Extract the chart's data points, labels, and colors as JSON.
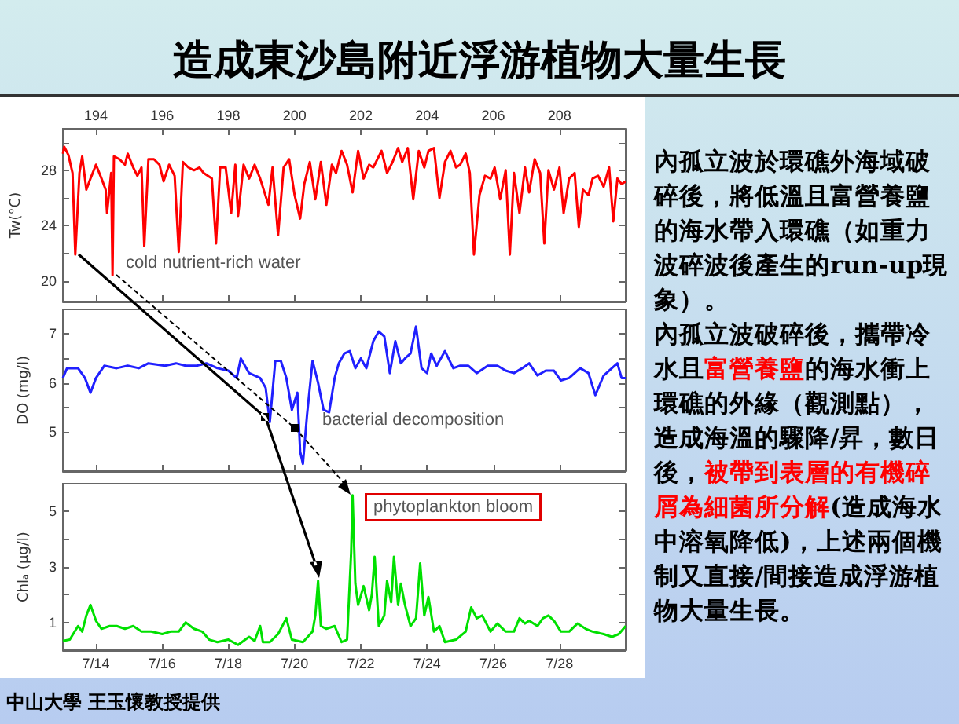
{
  "chart_data": [
    {
      "type": "line",
      "ylabel": "Tw(°C)",
      "annotations": [
        "cold nutrient-rich water"
      ],
      "tick_labels": "y",
      "xlim": [
        "--07-13",
        "--07-30"
      ],
      "xticks": [
        {
          "value": "--07-14",
          "label": "7/14"
        },
        {
          "value": "--07-16",
          "label": "7/16"
        },
        {
          "value": "--07-18",
          "label": "7/18"
        },
        {
          "value": "--07-20",
          "label": "7/20"
        },
        {
          "value": "--07-22",
          "label": "7/22"
        },
        {
          "value": "--07-24",
          "label": "7/24"
        },
        {
          "value": "--07-26",
          "label": "7/26"
        },
        {
          "value": "--07-28",
          "label": "7/28"
        }
      ],
      "x2lim": [
        193,
        210
      ],
      "x2ticks": [
        194,
        196,
        198,
        200,
        202,
        204,
        206,
        208
      ],
      "ylim": [
        18.5,
        31
      ],
      "yticks": [
        20,
        {
          "value": 22,
          "label": null
        },
        24,
        {
          "value": 26,
          "label": null
        },
        28,
        {
          "value": 30,
          "label": null
        }
      ],
      "series": [
        {
          "color": "#ff0000",
          "x": [
            "--07-13T00:00",
            "--07-13T01:00",
            "--07-13T04:00",
            "--07-13T07:00",
            "--07-13T09:00",
            "--07-13T12:00",
            "--07-13T14:00",
            "--07-13T17:00",
            "--07-13T20:00",
            "--07-14T00:00",
            "--07-14T04:00",
            "--07-14T07:00",
            "--07-14T08:00",
            "--07-14T11:00",
            "--07-14T12:00",
            "--07-14T13:00",
            "--07-14T17:00",
            "--07-14T21:00",
            "--07-14T23:00",
            "--07-15T03:00",
            "--07-15T06:00",
            "--07-15T09:00",
            "--07-15T11:00",
            "--07-15T14:00",
            "--07-15T18:00",
            "--07-15T22:00",
            "--07-16T01:00",
            "--07-16T05:00",
            "--07-16T09:00",
            "--07-16T12:00",
            "--07-16T15:00",
            "--07-16T19:00",
            "--07-16T23:00",
            "--07-17T03:00",
            "--07-17T06:00",
            "--07-17T12:00",
            "--07-17T15:00",
            "--07-17T18:00",
            "--07-17T22:00",
            "--07-18T02:00",
            "--07-18T05:00",
            "--07-18T07:00",
            "--07-18T11:00",
            "--07-18T15:00",
            "--07-18T19:00",
            "--07-18T23:00",
            "--07-19T05:00",
            "--07-19T08:00",
            "--07-19T12:00",
            "--07-19T16:00",
            "--07-19T20:00",
            "--07-20T00:00",
            "--07-20T04:00",
            "--07-20T07:00",
            "--07-20T11:00",
            "--07-20T15:00",
            "--07-20T19:00",
            "--07-20T23:00",
            "--07-21T03:00",
            "--07-21T06:00",
            "--07-21T10:00",
            "--07-21T14:00",
            "--07-21T18:00",
            "--07-21T22:00",
            "--07-22T02:00",
            "--07-22T06:00",
            "--07-22T09:00",
            "--07-22T15:00",
            "--07-22T19:00",
            "--07-22T23:00",
            "--07-23T03:00",
            "--07-23T06:00",
            "--07-23T10:00",
            "--07-23T14:00",
            "--07-23T18:00",
            "--07-23T22:00",
            "--07-24T01:00",
            "--07-24T05:00",
            "--07-24T09:00",
            "--07-24T13:00",
            "--07-24T17:00",
            "--07-24T21:00",
            "--07-25T00:00",
            "--07-25T04:00",
            "--07-25T07:00",
            "--07-25T10:00",
            "--07-25T14:00",
            "--07-25T18:00",
            "--07-25T22:00",
            "--07-26T01:00",
            "--07-26T05:00",
            "--07-26T09:00",
            "--07-26T12:00",
            "--07-26T15:00",
            "--07-26T19:00",
            "--07-26T23:00",
            "--07-27T02:00",
            "--07-27T06:00",
            "--07-27T10:00",
            "--07-27T13:00",
            "--07-27T16:00",
            "--07-27T20:00",
            "--07-28T00:00",
            "--07-28T03:00",
            "--07-28T07:00",
            "--07-28T11:00",
            "--07-28T14:00",
            "--07-28T17:00",
            "--07-28T21:00",
            "--07-29T00:00",
            "--07-29T04:00",
            "--07-29T08:00",
            "--07-29T12:00",
            "--07-29T15:00",
            "--07-29T18:00",
            "--07-29T21:00",
            "--07-30T00:00"
          ],
          "values": [
            29.2,
            29.7,
            29.1,
            27.8,
            21.9,
            27.8,
            29.0,
            26.6,
            27.4,
            28.4,
            27.4,
            26.6,
            24.9,
            27.8,
            20.4,
            29.0,
            28.8,
            28.4,
            29.2,
            28.2,
            27.6,
            28.2,
            22.5,
            28.8,
            28.8,
            28.4,
            27.2,
            28.4,
            27.6,
            22.1,
            28.6,
            28.2,
            28.0,
            28.2,
            27.8,
            27.4,
            22.7,
            28.2,
            28.2,
            24.9,
            28.4,
            24.7,
            28.4,
            27.4,
            28.4,
            27.4,
            25.5,
            28.2,
            23.3,
            28.2,
            28.8,
            26.2,
            24.5,
            27.0,
            28.6,
            25.9,
            28.6,
            25.5,
            28.4,
            27.8,
            29.4,
            28.4,
            26.4,
            29.4,
            27.4,
            28.4,
            28.2,
            29.4,
            27.8,
            28.6,
            29.6,
            28.6,
            29.6,
            25.9,
            29.4,
            28.2,
            29.4,
            29.6,
            26.0,
            28.6,
            29.4,
            28.2,
            28.4,
            29.2,
            27.8,
            21.9,
            26.2,
            27.6,
            27.4,
            28.2,
            25.9,
            28.0,
            21.9,
            27.8,
            24.9,
            28.2,
            26.4,
            28.8,
            27.8,
            22.7,
            28.0,
            26.6,
            28.2,
            24.9,
            27.4,
            27.8,
            23.9,
            26.6,
            26.2,
            27.4,
            27.6,
            26.8,
            28.2,
            24.3,
            27.4,
            27.0,
            27.2
          ]
        }
      ]
    },
    {
      "type": "line",
      "ylabel": "DO (mg/l)",
      "annotations": [
        "bacterial decomposition"
      ],
      "tick_labels": "y",
      "xlim": [
        "--07-13",
        "--07-30"
      ],
      "xticks": [
        {
          "value": "--07-14",
          "label": "7/14"
        },
        {
          "value": "--07-16",
          "label": "7/16"
        },
        {
          "value": "--07-18",
          "label": "7/18"
        },
        {
          "value": "--07-20",
          "label": "7/20"
        },
        {
          "value": "--07-22",
          "label": "7/22"
        },
        {
          "value": "--07-24",
          "label": "7/24"
        },
        {
          "value": "--07-26",
          "label": "7/26"
        },
        {
          "value": "--07-28",
          "label": "7/28"
        }
      ],
      "ylim": [
        4.2,
        7.5
      ],
      "yticks": [
        5,
        {
          "value": 5.5,
          "label": null
        },
        6,
        {
          "value": 6.5,
          "label": null
        },
        7
      ],
      "series": [
        {
          "color": "#2020ff",
          "x": [
            "--07-13T00:00",
            "--07-13T03:00",
            "--07-13T11:00",
            "--07-13T16:00",
            "--07-13T20:00",
            "--07-14T00:00",
            "--07-14T06:00",
            "--07-14T15:00",
            "--07-14T23:00",
            "--07-15T07:00",
            "--07-15T14:00",
            "--07-16T02:00",
            "--07-16T10:00",
            "--07-16T17:00",
            "--07-17T01:00",
            "--07-17T08:00",
            "--07-17T16:00",
            "--07-18T00:00",
            "--07-18T06:00",
            "--07-18T09:00",
            "--07-18T15:00",
            "--07-18T23:00",
            "--07-19T03:00",
            "--07-19T06:00",
            "--07-19T10:00",
            "--07-19T14:00",
            "--07-19T18:00",
            "--07-19T22:00",
            "--07-20T02:00",
            "--07-20T04:00",
            "--07-20T06:00",
            "--07-20T09:00",
            "--07-20T13:00",
            "--07-20T17:00",
            "--07-20T21:00",
            "--07-21T01:00",
            "--07-21T05:00",
            "--07-21T08:00",
            "--07-21T12:00",
            "--07-21T16:00",
            "--07-21T20:00",
            "--07-22T00:00",
            "--07-22T04:00",
            "--07-22T09:00",
            "--07-22T13:00",
            "--07-22T17:00",
            "--07-22T21:00",
            "--07-23T01:00",
            "--07-23T05:00",
            "--07-23T08:00",
            "--07-23T12:00",
            "--07-23T16:00",
            "--07-23T20:00",
            "--07-24T00:00",
            "--07-24T03:00",
            "--07-24T07:00",
            "--07-24T13:00",
            "--07-24T19:00",
            "--07-25T00:00",
            "--07-25T06:00",
            "--07-25T12:00",
            "--07-25T20:00",
            "--07-26T03:00",
            "--07-26T09:00",
            "--07-26T15:00",
            "--07-26T21:00",
            "--07-27T02:00",
            "--07-27T08:00",
            "--07-27T14:00",
            "--07-27T20:00",
            "--07-28T01:00",
            "--07-28T07:00",
            "--07-28T15:00",
            "--07-28T21:00",
            "--07-29T02:00",
            "--07-29T08:00",
            "--07-29T14:00",
            "--07-29T18:00",
            "--07-29T21:00",
            "--07-30T00:00"
          ],
          "values": [
            6.1,
            6.3,
            6.3,
            6.1,
            5.8,
            6.1,
            6.35,
            6.3,
            6.35,
            6.3,
            6.4,
            6.35,
            6.4,
            6.35,
            6.35,
            6.4,
            6.3,
            6.25,
            6.1,
            6.5,
            6.2,
            6.1,
            5.9,
            5.2,
            6.45,
            6.45,
            6.1,
            5.45,
            5.8,
            4.6,
            4.35,
            5.35,
            6.45,
            6.0,
            5.45,
            5.4,
            6.1,
            6.4,
            6.6,
            6.65,
            6.3,
            6.5,
            6.3,
            6.85,
            7.05,
            6.95,
            6.2,
            6.85,
            6.4,
            6.5,
            6.6,
            7.15,
            6.3,
            6.2,
            6.6,
            6.35,
            6.65,
            6.3,
            6.35,
            6.35,
            6.2,
            6.35,
            6.35,
            6.25,
            6.2,
            6.3,
            6.4,
            6.15,
            6.25,
            6.25,
            6.05,
            6.1,
            6.3,
            6.2,
            5.75,
            6.15,
            6.3,
            6.4,
            6.1,
            6.1
          ]
        }
      ]
    },
    {
      "type": "line",
      "ylabel": "Chlₐ (μg/l)",
      "annotations": [
        "phytoplankton bloom"
      ],
      "xlim": [
        "--07-13",
        "--07-30"
      ],
      "xticks": [
        {
          "value": "--07-14",
          "label": "7/14"
        },
        {
          "value": "--07-16",
          "label": "7/16"
        },
        {
          "value": "--07-18",
          "label": "7/18"
        },
        {
          "value": "--07-20",
          "label": "7/20"
        },
        {
          "value": "--07-22",
          "label": "7/22"
        },
        {
          "value": "--07-24",
          "label": "7/24"
        },
        {
          "value": "--07-26",
          "label": "7/26"
        },
        {
          "value": "--07-28",
          "label": "7/28"
        }
      ],
      "ylim": [
        0,
        6
      ],
      "yticks": [
        1,
        {
          "value": 2,
          "label": null
        },
        3,
        {
          "value": 4,
          "label": null
        },
        5
      ],
      "series": [
        {
          "color": "#00e000",
          "x": [
            "--07-13T00:00",
            "--07-13T05:00",
            "--07-13T11:00",
            "--07-13T14:00",
            "--07-13T17:00",
            "--07-13T20:00",
            "--07-14T00:00",
            "--07-14T04:00",
            "--07-14T10:00",
            "--07-14T15:00",
            "--07-14T21:00",
            "--07-15T03:00",
            "--07-15T09:00",
            "--07-15T16:00",
            "--07-16T00:00",
            "--07-16T06:00",
            "--07-16T12:00",
            "--07-16T17:00",
            "--07-16T23:00",
            "--07-17T05:00",
            "--07-17T10:00",
            "--07-17T16:00",
            "--07-18T00:00",
            "--07-18T07:00",
            "--07-18T15:00",
            "--07-18T19:00",
            "--07-18T23:00",
            "--07-19T01:00",
            "--07-19T06:00",
            "--07-19T12:00",
            "--07-19T18:00",
            "--07-19T22:00",
            "--07-20T06:00",
            "--07-20T13:00",
            "--07-20T15:00",
            "--07-20T17:00",
            "--07-20T19:00",
            "--07-20T23:00",
            "--07-21T05:00",
            "--07-21T10:00",
            "--07-21T14:00",
            "--07-21T17:00",
            "--07-21T18:00",
            "--07-21T20:00",
            "--07-21T22:00",
            "--07-22T02:00",
            "--07-22T06:00",
            "--07-22T08:00",
            "--07-22T10:00",
            "--07-22T13:00",
            "--07-22T17:00",
            "--07-22T19:00",
            "--07-22T22:00",
            "--07-23T00:00",
            "--07-23T03:00",
            "--07-23T05:00",
            "--07-23T08:00",
            "--07-23T12:00",
            "--07-23T16:00",
            "--07-23T19:00",
            "--07-23T22:00",
            "--07-24T01:00",
            "--07-24T05:00",
            "--07-24T09:00",
            "--07-24T13:00",
            "--07-24T21:00",
            "--07-25T04:00",
            "--07-25T08:00",
            "--07-25T12:00",
            "--07-25T16:00",
            "--07-25T22:00",
            "--07-26T03:00",
            "--07-26T09:00",
            "--07-26T15:00",
            "--07-26T19:00",
            "--07-26T23:00",
            "--07-27T02:00",
            "--07-27T08:00",
            "--07-27T12:00",
            "--07-27T16:00",
            "--07-27T20:00",
            "--07-28T01:00",
            "--07-28T07:00",
            "--07-28T13:00",
            "--07-28T19:00",
            "--07-29T00:00",
            "--07-29T08:00",
            "--07-29T14:00",
            "--07-29T19:00",
            "--07-30T00:00"
          ],
          "values": [
            0.33,
            0.38,
            0.87,
            0.67,
            1.25,
            1.63,
            1.06,
            0.77,
            0.87,
            0.87,
            0.77,
            0.87,
            0.67,
            0.67,
            0.58,
            0.67,
            0.67,
            1.0,
            0.77,
            0.67,
            0.38,
            0.29,
            0.38,
            0.19,
            0.48,
            0.33,
            0.87,
            0.29,
            0.29,
            0.58,
            1.15,
            0.38,
            0.29,
            0.67,
            1.25,
            2.5,
            0.87,
            0.77,
            0.87,
            0.29,
            0.38,
            3.56,
            5.58,
            2.4,
            1.63,
            2.31,
            1.44,
            2.02,
            3.37,
            0.87,
            1.25,
            2.5,
            1.73,
            3.37,
            1.63,
            2.4,
            1.63,
            0.87,
            1.15,
            3.13,
            1.25,
            1.92,
            0.67,
            0.87,
            0.29,
            0.38,
            0.67,
            1.54,
            1.15,
            1.25,
            0.67,
            0.96,
            0.67,
            0.67,
            1.15,
            0.96,
            1.06,
            0.87,
            1.15,
            1.25,
            1.06,
            0.67,
            0.67,
            0.96,
            0.77,
            0.67,
            0.58,
            0.48,
            0.58,
            0.87
          ]
        }
      ]
    },
    {
      "type": "other",
      "title": "造成東沙島附近浮游植物大量生長",
      "annotations": [
        "內孤立波於環礁外海域破碎後，將低溫且富營養鹽的海水帶入環礁（如重力波碎波後產生的run-up現象）。",
        "內孤立波破碎後，攜帶冷水且",
        "富營養鹽",
        "的海水衝上環礁的外緣（觀測點），造成海溫的驟降/昇，數日後，",
        "被帶到表層的有機碎屑為細菌所分解",
        "(造成海水中溶氧降低)，上述兩個機制又直接/間接造成浮游植物大量生長。",
        "中山大學 王玉懷教授提供"
      ],
      "colors": [
        "#000000",
        "#000000",
        "#ff0000",
        "#000000",
        "#ff0000",
        "#000000",
        "#000000"
      ]
    }
  ]
}
